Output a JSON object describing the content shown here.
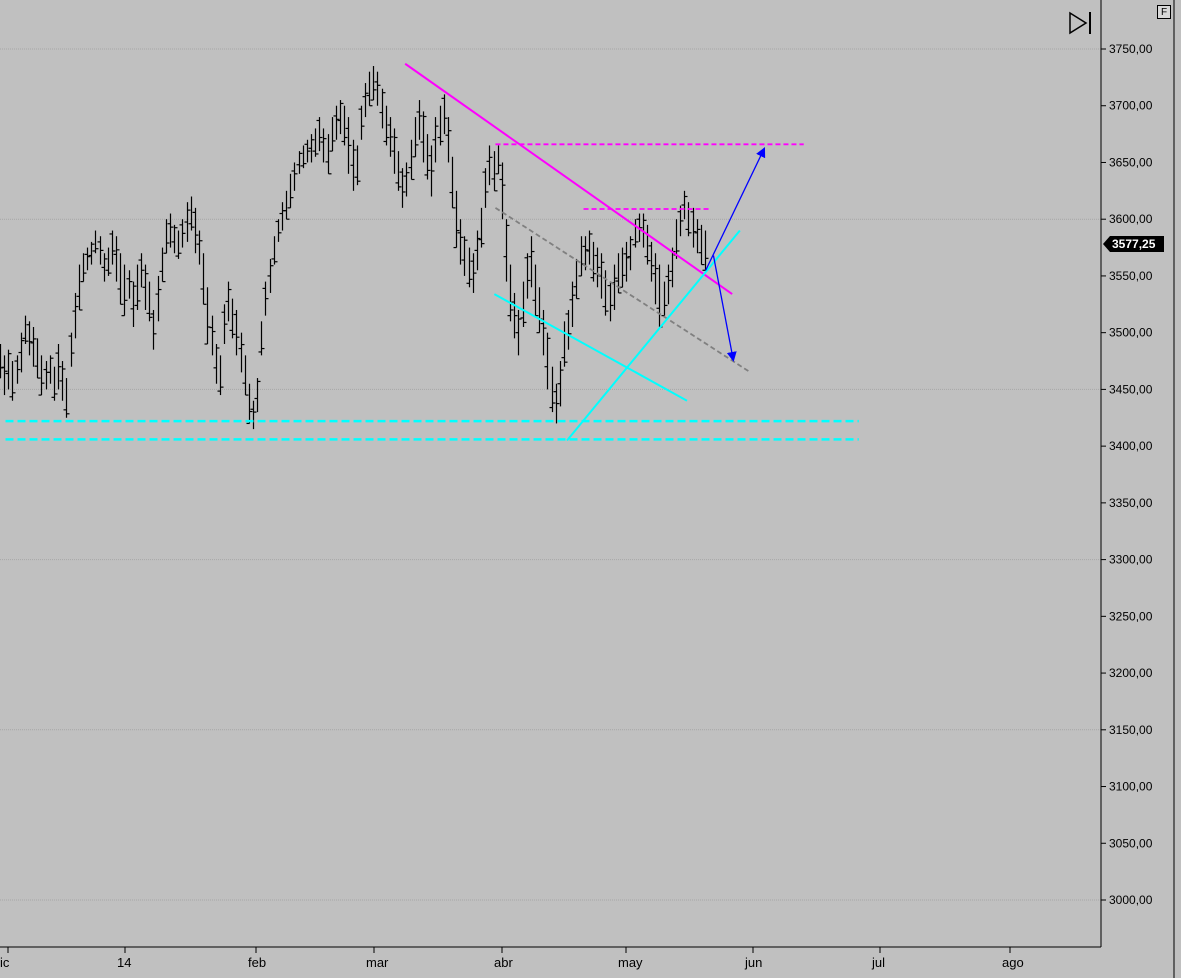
{
  "chart_data": {
    "type": "bar",
    "subtype": "ohlc",
    "ylim": [
      2960,
      3768
    ],
    "y_ticks": [
      "3750,00",
      "3700,00",
      "3650,00",
      "3600,00",
      "3550,00",
      "3500,00",
      "3450,00",
      "3400,00",
      "3350,00",
      "3300,00",
      "3250,00",
      "3200,00",
      "3150,00",
      "3100,00",
      "3050,00",
      "3000,00"
    ],
    "y_tick_values": [
      3750,
      3700,
      3650,
      3600,
      3550,
      3500,
      3450,
      3400,
      3350,
      3300,
      3250,
      3200,
      3150,
      3100,
      3050,
      3000
    ],
    "x_ticks": [
      "ic",
      "14",
      "feb",
      "mar",
      "abr",
      "may",
      "jun",
      "jul",
      "ago"
    ],
    "last_price": "3577,25",
    "grid": true,
    "series": [
      {
        "values_hl": [
          [
            3490,
            3460
          ],
          [
            3480,
            3445
          ],
          [
            3485,
            3450
          ],
          [
            3475,
            3440
          ],
          [
            3480,
            3455
          ],
          [
            3500,
            3465
          ],
          [
            3515,
            3490
          ],
          [
            3510,
            3480
          ],
          [
            3505,
            3470
          ],
          [
            3495,
            3460
          ],
          [
            3480,
            3445
          ],
          [
            3475,
            3450
          ],
          [
            3480,
            3455
          ],
          [
            3470,
            3440
          ],
          [
            3490,
            3450
          ],
          [
            3475,
            3440
          ],
          [
            3460,
            3425
          ],
          [
            3500,
            3470
          ],
          [
            3535,
            3495
          ],
          [
            3560,
            3520
          ],
          [
            3570,
            3545
          ],
          [
            3575,
            3555
          ],
          [
            3580,
            3560
          ],
          [
            3590,
            3570
          ],
          [
            3585,
            3560
          ],
          [
            3570,
            3545
          ],
          [
            3575,
            3550
          ],
          [
            3590,
            3560
          ],
          [
            3585,
            3545
          ],
          [
            3570,
            3525
          ],
          [
            3560,
            3515
          ],
          [
            3555,
            3530
          ],
          [
            3545,
            3505
          ],
          [
            3560,
            3520
          ],
          [
            3570,
            3540
          ],
          [
            3560,
            3520
          ],
          [
            3545,
            3510
          ],
          [
            3520,
            3485
          ],
          [
            3550,
            3510
          ],
          [
            3575,
            3545
          ],
          [
            3600,
            3570
          ],
          [
            3605,
            3575
          ],
          [
            3595,
            3570
          ],
          [
            3590,
            3565
          ],
          [
            3600,
            3575
          ],
          [
            3615,
            3580
          ],
          [
            3620,
            3590
          ],
          [
            3610,
            3570
          ],
          [
            3590,
            3560
          ],
          [
            3570,
            3525
          ],
          [
            3540,
            3490
          ],
          [
            3515,
            3480
          ],
          [
            3490,
            3455
          ],
          [
            3480,
            3445
          ],
          [
            3525,
            3490
          ],
          [
            3545,
            3510
          ],
          [
            3530,
            3495
          ],
          [
            3520,
            3480
          ],
          [
            3500,
            3465
          ],
          [
            3480,
            3445
          ],
          [
            3455,
            3420
          ],
          [
            3440,
            3415
          ],
          [
            3460,
            3430
          ],
          [
            3510,
            3480
          ],
          [
            3545,
            3515
          ],
          [
            3565,
            3535
          ],
          [
            3585,
            3560
          ],
          [
            3600,
            3580
          ],
          [
            3615,
            3590
          ],
          [
            3625,
            3600
          ],
          [
            3640,
            3610
          ],
          [
            3650,
            3625
          ],
          [
            3660,
            3640
          ],
          [
            3665,
            3645
          ],
          [
            3670,
            3650
          ],
          [
            3675,
            3650
          ],
          [
            3680,
            3655
          ],
          [
            3690,
            3660
          ],
          [
            3680,
            3650
          ],
          [
            3675,
            3640
          ],
          [
            3690,
            3660
          ],
          [
            3700,
            3670
          ],
          [
            3705,
            3675
          ],
          [
            3700,
            3665
          ],
          [
            3690,
            3640
          ],
          [
            3670,
            3625
          ],
          [
            3665,
            3630
          ],
          [
            3700,
            3670
          ],
          [
            3720,
            3690
          ],
          [
            3730,
            3700
          ],
          [
            3735,
            3705
          ],
          [
            3730,
            3700
          ],
          [
            3715,
            3680
          ],
          [
            3700,
            3665
          ],
          [
            3690,
            3655
          ],
          [
            3680,
            3640
          ],
          [
            3660,
            3625
          ],
          [
            3645,
            3610
          ],
          [
            3650,
            3620
          ],
          [
            3670,
            3635
          ],
          [
            3690,
            3655
          ],
          [
            3705,
            3670
          ],
          [
            3695,
            3650
          ],
          [
            3675,
            3635
          ],
          [
            3665,
            3620
          ],
          [
            3690,
            3650
          ],
          [
            3700,
            3665
          ],
          [
            3710,
            3675
          ],
          [
            3690,
            3650
          ],
          [
            3655,
            3610
          ],
          [
            3625,
            3575
          ],
          [
            3600,
            3560
          ],
          [
            3585,
            3550
          ],
          [
            3575,
            3540
          ],
          [
            3570,
            3535
          ],
          [
            3590,
            3555
          ],
          [
            3610,
            3575
          ],
          [
            3645,
            3610
          ],
          [
            3665,
            3630
          ],
          [
            3660,
            3625
          ],
          [
            3665,
            3640
          ],
          [
            3650,
            3600
          ],
          [
            3600,
            3545
          ],
          [
            3560,
            3510
          ],
          [
            3535,
            3495
          ],
          [
            3520,
            3480
          ],
          [
            3545,
            3505
          ],
          [
            3570,
            3530
          ],
          [
            3585,
            3540
          ],
          [
            3560,
            3515
          ],
          [
            3540,
            3500
          ],
          [
            3520,
            3480
          ],
          [
            3500,
            3450
          ],
          [
            3470,
            3430
          ],
          [
            3455,
            3420
          ],
          [
            3475,
            3435
          ],
          [
            3510,
            3470
          ],
          [
            3520,
            3485
          ],
          [
            3545,
            3505
          ],
          [
            3565,
            3530
          ],
          [
            3585,
            3550
          ],
          [
            3585,
            3555
          ],
          [
            3590,
            3560
          ],
          [
            3580,
            3545
          ],
          [
            3575,
            3540
          ],
          [
            3570,
            3530
          ],
          [
            3555,
            3515
          ],
          [
            3545,
            3510
          ],
          [
            3560,
            3520
          ],
          [
            3570,
            3535
          ],
          [
            3575,
            3540
          ],
          [
            3580,
            3545
          ],
          [
            3585,
            3555
          ],
          [
            3600,
            3575
          ],
          [
            3605,
            3580
          ],
          [
            3605,
            3575
          ],
          [
            3595,
            3560
          ],
          [
            3580,
            3545
          ],
          [
            3570,
            3525
          ],
          [
            3560,
            3505
          ],
          [
            3545,
            3515
          ],
          [
            3560,
            3525
          ],
          [
            3575,
            3540
          ],
          [
            3600,
            3565
          ],
          [
            3612,
            3585
          ],
          [
            3625,
            3600
          ],
          [
            3615,
            3585
          ],
          [
            3610,
            3575
          ],
          [
            3600,
            3570
          ],
          [
            3595,
            3560
          ],
          [
            3590,
            3555
          ]
        ]
      }
    ],
    "lines": [
      {
        "name": "resistance-trendline",
        "color": "#ff00ff",
        "style": "solid",
        "points": [
          [
            0.368,
            3737
          ],
          [
            0.665,
            3534
          ]
        ]
      },
      {
        "name": "upper-resistance-dashed",
        "color": "#ff00ff",
        "style": "dashed",
        "points": [
          [
            0.45,
            3666
          ],
          [
            0.73,
            3666
          ]
        ]
      },
      {
        "name": "mid-resistance-dashed",
        "color": "#ff00ff",
        "style": "dashed",
        "points": [
          [
            0.53,
            3609
          ],
          [
            0.645,
            3609
          ]
        ]
      },
      {
        "name": "support-dashed-1",
        "color": "#00ffff",
        "style": "dashed",
        "points": [
          [
            0.005,
            3422
          ],
          [
            0.78,
            3422
          ]
        ]
      },
      {
        "name": "support-dashed-2",
        "color": "#00ffff",
        "style": "dashed",
        "points": [
          [
            0.005,
            3406
          ],
          [
            0.78,
            3406
          ]
        ]
      },
      {
        "name": "channel-midline-dashed",
        "color": "#808080",
        "style": "dashed",
        "points": [
          [
            0.45,
            3610
          ],
          [
            0.68,
            3466
          ]
        ]
      },
      {
        "name": "lower-channel",
        "color": "#00ffff",
        "style": "solid",
        "points": [
          [
            0.449,
            3534
          ],
          [
            0.624,
            3440
          ]
        ]
      },
      {
        "name": "rising-support",
        "color": "#00ffff",
        "style": "solid",
        "points": [
          [
            0.515,
            3405
          ],
          [
            0.672,
            3590
          ]
        ]
      }
    ],
    "arrows": [
      {
        "name": "bullish-arrow",
        "color": "#0000ff",
        "from": [
          0.641,
          3555
        ],
        "to": [
          0.694,
          3662
        ]
      },
      {
        "name": "bearish-arrow",
        "color": "#0000ff",
        "from": [
          0.648,
          3568
        ],
        "to": [
          0.666,
          3476
        ]
      }
    ]
  },
  "toolbar": {
    "f_label": "F",
    "end_icon": "skip-to-end-icon"
  },
  "colors": {
    "background": "#c0c0c0",
    "grid": "#a8a8a8",
    "bars": "#000000",
    "price_tag": "#000000"
  }
}
